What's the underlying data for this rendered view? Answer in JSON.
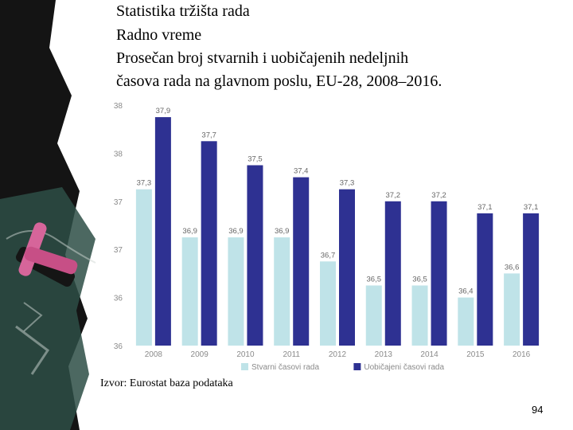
{
  "slide": {
    "title_lines": [
      "Statistika tržišta rada",
      "Radno vreme",
      "Prosečan broj stvarnih i uobičajenih nedeljnih",
      "časova rada na glavnom poslu, EU-28, 2008‒2016."
    ],
    "source": "Izvor: Eurostat baza podataka",
    "page_number": "94"
  },
  "colors": {
    "actual": "#bfe3e8",
    "usual": "#2e3192",
    "axis_text": "#8a8a8a",
    "label_text": "#666666",
    "chalkboard": "#1f3a33"
  },
  "chart_data": {
    "type": "bar",
    "categories": [
      "2008",
      "2009",
      "2010",
      "2011",
      "2012",
      "2013",
      "2014",
      "2015",
      "2016"
    ],
    "series": [
      {
        "name": "Stvarni časovi rada",
        "values": [
          37.3,
          36.9,
          36.9,
          36.9,
          36.7,
          36.5,
          36.5,
          36.4,
          36.6
        ],
        "labels": [
          "37,3",
          "36,9",
          "36,9",
          "36,9",
          "36,7",
          "36,5",
          "36,5",
          "36,4",
          "36,6"
        ]
      },
      {
        "name": "Uobičajeni časovi rada",
        "values": [
          37.9,
          37.7,
          37.5,
          37.4,
          37.3,
          37.2,
          37.2,
          37.1,
          37.1
        ],
        "labels": [
          "37,9",
          "37,7",
          "37,5",
          "37,4",
          "37,3",
          "37,2",
          "37,2",
          "37,1",
          "37,1"
        ]
      }
    ],
    "ylim": [
      36,
      38
    ],
    "ytick_labels": [
      "38",
      "38",
      "37",
      "37",
      "36",
      "36"
    ],
    "grid": false,
    "legend_position": "bottom"
  }
}
